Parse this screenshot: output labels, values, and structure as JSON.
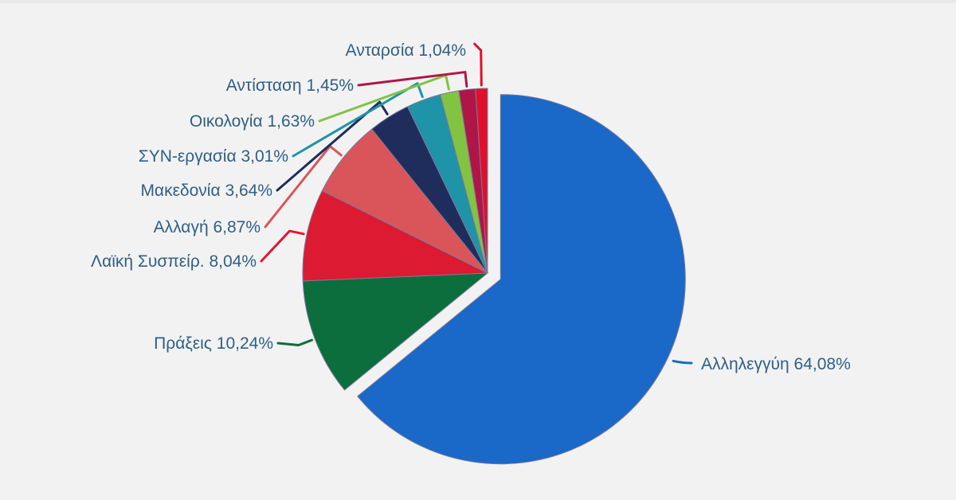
{
  "chart_data": {
    "type": "pie",
    "title": "",
    "start_angle_deg": 0,
    "direction": "clockwise",
    "exploded_slice": "Αλληλεγγύη",
    "slices": [
      {
        "name": "Αλληλεγγύη",
        "value": 64.08,
        "label": "Αλληλεγγύη 64,08%",
        "color": "#1a68c8",
        "label_side": "right"
      },
      {
        "name": "Πράξεις",
        "value": 10.24,
        "label": "Πράξεις 10,24%",
        "color": "#0b6e3c",
        "label_side": "left"
      },
      {
        "name": "Λαϊκή Συσπείρ.",
        "value": 8.04,
        "label": "Λαϊκή Συσπείρ. 8,04%",
        "color": "#dc1a32",
        "label_side": "left"
      },
      {
        "name": "Αλλαγή",
        "value": 6.87,
        "label": "Αλλαγή 6,87%",
        "color": "#d9555a",
        "label_side": "left"
      },
      {
        "name": "Μακεδονία",
        "value": 3.64,
        "label": "Μακεδονία 3,64%",
        "color": "#1e2d5c",
        "label_side": "left"
      },
      {
        "name": "ΣΥΝ-εργασία",
        "value": 3.01,
        "label": "ΣΥΝ-εργασία 3,01%",
        "color": "#1f93a8",
        "label_side": "left"
      },
      {
        "name": "Οικολογία",
        "value": 1.63,
        "label": "Οικολογία 1,63%",
        "color": "#82c341",
        "label_side": "left"
      },
      {
        "name": "Αντίσταση",
        "value": 1.45,
        "label": "Αντίσταση 1,45%",
        "color": "#b01548",
        "label_side": "left"
      },
      {
        "name": "Ανταρσία",
        "value": 1.04,
        "label": "Ανταρσία 1,04%",
        "color": "#e0102a",
        "label_side": "left"
      }
    ]
  }
}
